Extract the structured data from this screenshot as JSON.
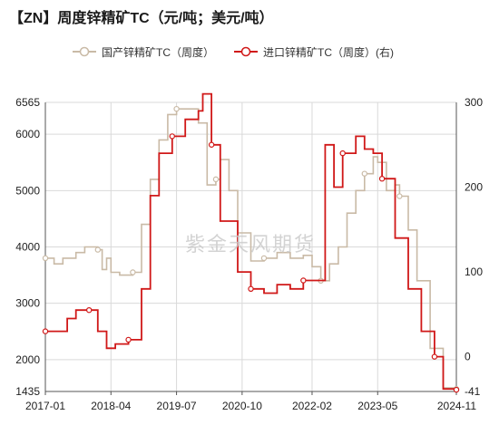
{
  "chart_data": {
    "type": "line",
    "title": "【ZN】周度锌精矿TC（元/吨；美元/吨）",
    "xlabel": "",
    "ylabel": "",
    "x_ticks": [
      "2017-01",
      "2018-04",
      "2019-07",
      "2020-10",
      "2022-02",
      "2023-05",
      "2024-11"
    ],
    "xlim": [
      "2017-01",
      "2024-11"
    ],
    "y_left": {
      "ticks": [
        1435,
        2000,
        3000,
        4000,
        5000,
        6000,
        6565
      ],
      "lim": [
        1435,
        6565
      ]
    },
    "y_right": {
      "ticks": [
        -41,
        0,
        100,
        200,
        300
      ],
      "lim": [
        -41,
        300
      ]
    },
    "grid": true,
    "legend_position": "top",
    "watermark": "紫金天风期货",
    "series": [
      {
        "name": "国产锌精矿TC（周度）",
        "axis": "left",
        "color": "#c9baa6",
        "points": [
          [
            "2017-01",
            3800
          ],
          [
            "2017-03",
            3700
          ],
          [
            "2017-05",
            3800
          ],
          [
            "2017-08",
            3900
          ],
          [
            "2017-10",
            4000
          ],
          [
            "2018-01",
            3950
          ],
          [
            "2018-02",
            3600
          ],
          [
            "2018-03",
            3800
          ],
          [
            "2018-04",
            3550
          ],
          [
            "2018-06",
            3500
          ],
          [
            "2018-09",
            3550
          ],
          [
            "2018-11",
            4400
          ],
          [
            "2019-01",
            5200
          ],
          [
            "2019-03",
            5900
          ],
          [
            "2019-05",
            6350
          ],
          [
            "2019-07",
            6450
          ],
          [
            "2019-10",
            6450
          ],
          [
            "2019-12",
            6200
          ],
          [
            "2020-01",
            6200
          ],
          [
            "2020-02",
            5100
          ],
          [
            "2020-04",
            5200
          ],
          [
            "2020-05",
            5550
          ],
          [
            "2020-07",
            5000
          ],
          [
            "2020-09",
            4250
          ],
          [
            "2020-12",
            3750
          ],
          [
            "2021-03",
            3800
          ],
          [
            "2021-06",
            3900
          ],
          [
            "2021-09",
            3800
          ],
          [
            "2021-12",
            3850
          ],
          [
            "2022-02",
            3650
          ],
          [
            "2022-04",
            3400
          ],
          [
            "2022-06",
            3700
          ],
          [
            "2022-08",
            4000
          ],
          [
            "2022-10",
            4600
          ],
          [
            "2022-12",
            5000
          ],
          [
            "2023-02",
            5300
          ],
          [
            "2023-04",
            5600
          ],
          [
            "2023-05",
            5500
          ],
          [
            "2023-07",
            5000
          ],
          [
            "2023-09",
            5100
          ],
          [
            "2023-10",
            4900
          ],
          [
            "2023-12",
            4300
          ],
          [
            "2024-02",
            3400
          ],
          [
            "2024-05",
            2200
          ],
          [
            "2024-08",
            1500
          ],
          [
            "2024-11",
            1480
          ]
        ]
      },
      {
        "name": "进口锌精矿TC（周度）(右)",
        "axis": "right",
        "color": "#d01818",
        "points": [
          [
            "2017-01",
            30
          ],
          [
            "2017-04",
            30
          ],
          [
            "2017-06",
            45
          ],
          [
            "2017-08",
            55
          ],
          [
            "2017-11",
            55
          ],
          [
            "2018-01",
            30
          ],
          [
            "2018-03",
            10
          ],
          [
            "2018-05",
            15
          ],
          [
            "2018-08",
            20
          ],
          [
            "2018-11",
            80
          ],
          [
            "2019-01",
            190
          ],
          [
            "2019-03",
            240
          ],
          [
            "2019-06",
            260
          ],
          [
            "2019-09",
            280
          ],
          [
            "2019-12",
            290
          ],
          [
            "2020-01",
            310
          ],
          [
            "2020-03",
            250
          ],
          [
            "2020-05",
            160
          ],
          [
            "2020-07",
            160
          ],
          [
            "2020-09",
            100
          ],
          [
            "2020-12",
            80
          ],
          [
            "2021-03",
            75
          ],
          [
            "2021-06",
            85
          ],
          [
            "2021-09",
            80
          ],
          [
            "2021-12",
            90
          ],
          [
            "2022-02",
            90
          ],
          [
            "2022-05",
            250
          ],
          [
            "2022-07",
            200
          ],
          [
            "2022-09",
            240
          ],
          [
            "2022-12",
            260
          ],
          [
            "2023-02",
            245
          ],
          [
            "2023-04",
            240
          ],
          [
            "2023-06",
            210
          ],
          [
            "2023-09",
            140
          ],
          [
            "2023-12",
            80
          ],
          [
            "2024-03",
            30
          ],
          [
            "2024-06",
            0
          ],
          [
            "2024-08",
            -38
          ],
          [
            "2024-11",
            -39
          ]
        ]
      }
    ]
  }
}
